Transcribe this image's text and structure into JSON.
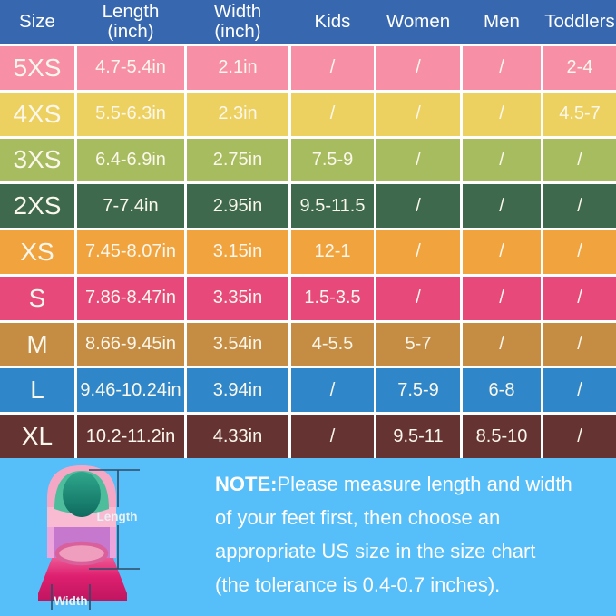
{
  "colors": {
    "header_bg": "#3767AE",
    "grid_line": "#FFFFFF",
    "table_text": "#FBF7EC",
    "bottom_bg": "#56BEF8",
    "note_text": "#FFFFFF"
  },
  "table": {
    "headers": [
      {
        "line1": "Size",
        "line2": ""
      },
      {
        "line1": "Length",
        "line2": "(inch)"
      },
      {
        "line1": "Width",
        "line2": "(inch)"
      },
      {
        "line1": "Kids",
        "line2": ""
      },
      {
        "line1": "Women",
        "line2": ""
      },
      {
        "line1": "Men",
        "line2": ""
      },
      {
        "line1": "Toddlers",
        "line2": ""
      }
    ],
    "rows": [
      {
        "size": "5XS",
        "length": "4.7-5.4in",
        "width": "2.1in",
        "kids": "/",
        "women": "/",
        "men": "/",
        "toddlers": "2-4",
        "color": "#F78FA7"
      },
      {
        "size": "4XS",
        "length": "5.5-6.3in",
        "width": "2.3in",
        "kids": "/",
        "women": "/",
        "men": "/",
        "toddlers": "4.5-7",
        "color": "#EDD160"
      },
      {
        "size": "3XS",
        "length": "6.4-6.9in",
        "width": "2.75in",
        "kids": "7.5-9",
        "women": "/",
        "men": "/",
        "toddlers": "/",
        "color": "#A6BC5E"
      },
      {
        "size": "2XS",
        "length": "7-7.4in",
        "width": "2.95in",
        "kids": "9.5-11.5",
        "women": "/",
        "men": "/",
        "toddlers": "/",
        "color": "#3E694C"
      },
      {
        "size": "XS",
        "length": "7.45-8.07in",
        "width": "3.15in",
        "kids": "12-1",
        "women": "/",
        "men": "/",
        "toddlers": "/",
        "color": "#F1A33E"
      },
      {
        "size": "S",
        "length": "7.86-8.47in",
        "width": "3.35in",
        "kids": "1.5-3.5",
        "women": "/",
        "men": "/",
        "toddlers": "/",
        "color": "#E7497B"
      },
      {
        "size": "M",
        "length": "8.66-9.45in",
        "width": "3.54in",
        "kids": "4-5.5",
        "women": "5-7",
        "men": "/",
        "toddlers": "/",
        "color": "#C58C43"
      },
      {
        "size": "L",
        "length": "9.46-10.24in",
        "width": "3.94in",
        "kids": "/",
        "women": "7.5-9",
        "men": "6-8",
        "toddlers": "/",
        "color": "#2F87C9"
      },
      {
        "size": "XL",
        "length": "10.2-11.2in",
        "width": "4.33in",
        "kids": "/",
        "women": "9.5-11",
        "men": "8.5-10",
        "toddlers": "/",
        "color": "#653432"
      }
    ]
  },
  "chart_data": {
    "type": "table",
    "title": "Swim fin size chart",
    "columns": [
      "Size",
      "Length (inch)",
      "Width (inch)",
      "Kids",
      "Women",
      "Men",
      "Toddlers"
    ],
    "rows": [
      [
        "5XS",
        "4.7-5.4in",
        "2.1in",
        "/",
        "/",
        "/",
        "2-4"
      ],
      [
        "4XS",
        "5.5-6.3in",
        "2.3in",
        "/",
        "/",
        "/",
        "4.5-7"
      ],
      [
        "3XS",
        "6.4-6.9in",
        "2.75in",
        "7.5-9",
        "/",
        "/",
        "/"
      ],
      [
        "2XS",
        "7-7.4in",
        "2.95in",
        "9.5-11.5",
        "/",
        "/",
        "/"
      ],
      [
        "XS",
        "7.45-8.07in",
        "3.15in",
        "12-1",
        "/",
        "/",
        "/"
      ],
      [
        "S",
        "7.86-8.47in",
        "3.35in",
        "1.5-3.5",
        "/",
        "/",
        "/"
      ],
      [
        "M",
        "8.66-9.45in",
        "3.54in",
        "4-5.5",
        "5-7",
        "/",
        "/"
      ],
      [
        "L",
        "9.46-10.24in",
        "3.94in",
        "/",
        "7.5-9",
        "6-8",
        "/"
      ],
      [
        "XL",
        "10.2-11.2in",
        "4.33in",
        "/",
        "9.5-11",
        "8.5-10",
        "/"
      ]
    ]
  },
  "note": {
    "label": "NOTE:",
    "lines": [
      "Please measure length and width",
      "of your feet first, then choose an",
      "appropriate US size in the size chart",
      "(the tolerance is 0.4-0.7 inches)."
    ]
  },
  "figure": {
    "length_label": "Length",
    "width_label": "Width"
  }
}
